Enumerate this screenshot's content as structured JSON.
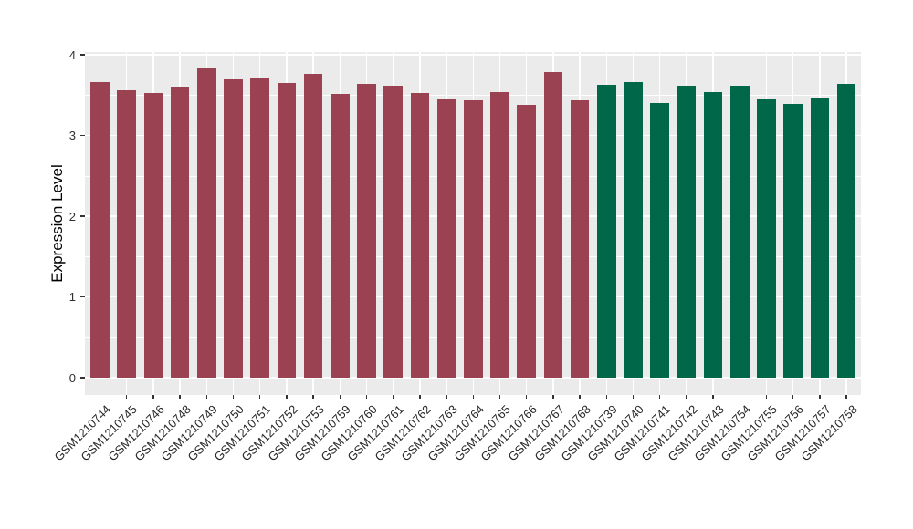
{
  "chart_data": {
    "type": "bar",
    "title": "",
    "xlabel": "",
    "ylabel": "Expression Level",
    "categories": [
      "GSM1210744",
      "GSM1210745",
      "GSM1210746",
      "GSM1210748",
      "GSM1210749",
      "GSM1210750",
      "GSM1210751",
      "GSM1210752",
      "GSM1210753",
      "GSM1210759",
      "GSM1210760",
      "GSM1210761",
      "GSM1210762",
      "GSM1210763",
      "GSM1210764",
      "GSM1210765",
      "GSM1210766",
      "GSM1210767",
      "GSM1210768",
      "GSM1210739",
      "GSM1210740",
      "GSM1210741",
      "GSM1210742",
      "GSM1210743",
      "GSM1210754",
      "GSM1210755",
      "GSM1210756",
      "GSM1210757",
      "GSM1210758"
    ],
    "values": [
      3.66,
      3.56,
      3.53,
      3.6,
      3.83,
      3.69,
      3.72,
      3.65,
      3.76,
      3.51,
      3.64,
      3.62,
      3.53,
      3.46,
      3.43,
      3.54,
      3.38,
      3.79,
      3.44,
      3.63,
      3.66,
      3.4,
      3.62,
      3.54,
      3.62,
      3.46,
      3.39,
      3.47,
      3.64
    ],
    "bar_colors": [
      "#9a4252",
      "#9a4252",
      "#9a4252",
      "#9a4252",
      "#9a4252",
      "#9a4252",
      "#9a4252",
      "#9a4252",
      "#9a4252",
      "#9a4252",
      "#9a4252",
      "#9a4252",
      "#9a4252",
      "#9a4252",
      "#9a4252",
      "#9a4252",
      "#9a4252",
      "#9a4252",
      "#9a4252",
      "#006848",
      "#006848",
      "#006848",
      "#006848",
      "#006848",
      "#006848",
      "#006848",
      "#006848",
      "#006848",
      "#006848"
    ],
    "yticks": [
      "0",
      "1",
      "2",
      "3",
      "4"
    ],
    "ytick_values": [
      0,
      1,
      2,
      3,
      4
    ],
    "yminor_values": [
      0.5,
      1.5,
      2.5,
      3.5
    ],
    "ylim": [
      0,
      4.05
    ],
    "grid": true,
    "legend_position": "none",
    "colors": {
      "group_left": "#9a4252",
      "group_right": "#006848",
      "panel_background": "#ebebeb",
      "gridline": "#ffffff",
      "tick": "#333333",
      "tick_label": "#262626",
      "axis_title": "#000000"
    }
  }
}
